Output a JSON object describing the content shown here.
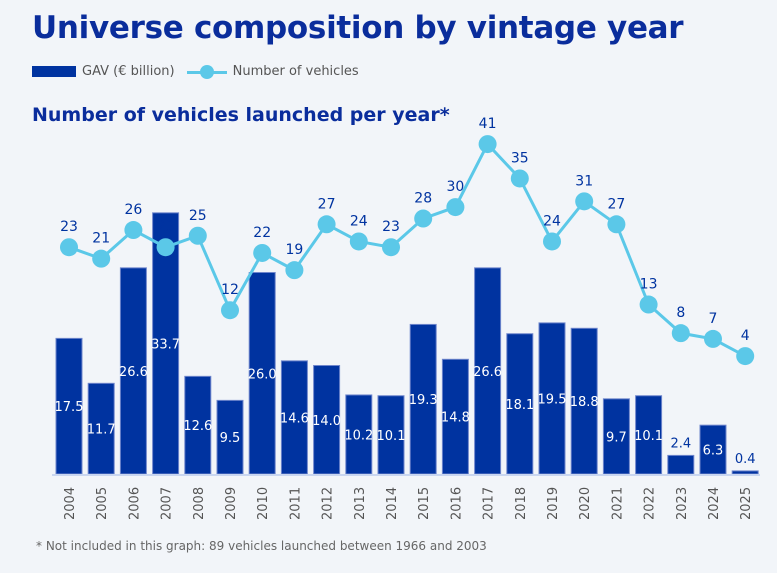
{
  "title": "Universe composition by vintage year",
  "subtitle": "Number of vehicles launched per year*",
  "footnote": "* Not included in this graph: 89 vehicles launched between 1966 and 2003",
  "colors": {
    "bar": "#0033a0",
    "line": "#5bc8e8",
    "title": "#0a2d9c"
  },
  "chart_data": {
    "type": "bar",
    "categories": [
      "2004",
      "2005",
      "2006",
      "2007",
      "2008",
      "2009",
      "2010",
      "2011",
      "2012",
      "2013",
      "2014",
      "2015",
      "2016",
      "2017",
      "2018",
      "2019",
      "2020",
      "2021",
      "2022",
      "2023",
      "2024",
      "2025"
    ],
    "series": [
      {
        "name": "GAV (€ billion)",
        "type": "bar",
        "values": [
          17.5,
          11.7,
          26.6,
          33.7,
          12.6,
          9.5,
          26.0,
          14.6,
          14.0,
          10.2,
          10.1,
          19.3,
          14.8,
          26.6,
          18.1,
          19.5,
          18.8,
          9.7,
          10.1,
          2.4,
          6.3,
          0.4
        ]
      },
      {
        "name": "Number of vehicles",
        "type": "line",
        "values": [
          23,
          21,
          26,
          23,
          25,
          12,
          22,
          19,
          27,
          24,
          23,
          28,
          30,
          41,
          35,
          24,
          31,
          27,
          13,
          8,
          7,
          4
        ]
      }
    ],
    "legend": "top-left"
  }
}
